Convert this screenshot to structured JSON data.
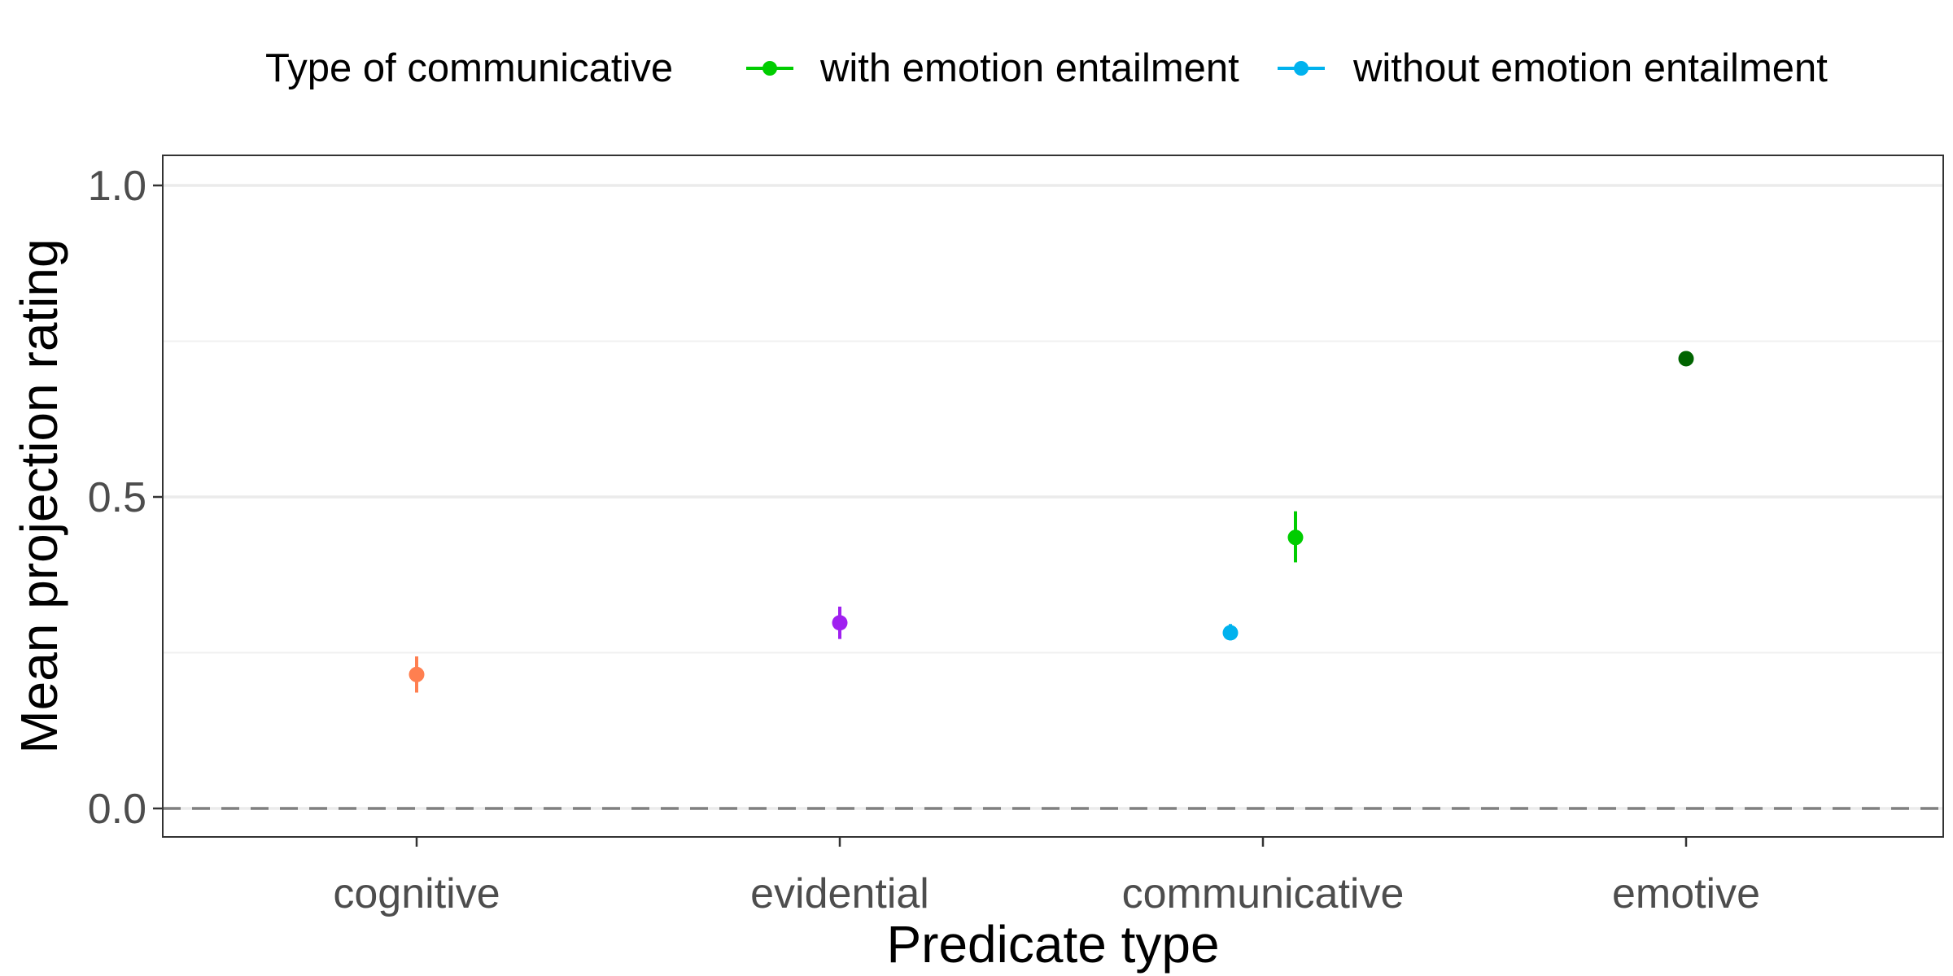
{
  "chart_data": {
    "type": "scatter",
    "subtype": "point-range",
    "categories": [
      "cognitive",
      "evidential",
      "communicative",
      "emotive"
    ],
    "xlabel": "Predicate type",
    "ylabel": "Mean projection rating",
    "ylim": [
      -0.05,
      1.05
    ],
    "yticks": [
      "0.0",
      "0.5",
      "1.0"
    ],
    "reference_line": {
      "y": 0.0,
      "style": "dashed"
    },
    "grid": true,
    "legend": {
      "title": "Type of communicative",
      "placement": "top",
      "entries": [
        {
          "label": "with emotion entailment",
          "color": "#00CD00"
        },
        {
          "label": "without emotion entailment",
          "color": "#00B2EE"
        }
      ]
    },
    "points": [
      {
        "category": "cognitive",
        "offset": 0,
        "y": 0.215,
        "ymin": 0.186,
        "ymax": 0.244,
        "color": "#FF7F50"
      },
      {
        "category": "evidential",
        "offset": 0,
        "y": 0.298,
        "ymin": 0.272,
        "ymax": 0.324,
        "color": "#A020F0"
      },
      {
        "category": "communicative",
        "offset": -1,
        "y": 0.282,
        "ymin": 0.27,
        "ymax": 0.296,
        "color": "#00B2EE"
      },
      {
        "category": "communicative",
        "offset": 1,
        "y": 0.435,
        "ymin": 0.395,
        "ymax": 0.477,
        "color": "#00CD00"
      },
      {
        "category": "emotive",
        "offset": 0,
        "y": 0.722,
        "ymin": 0.713,
        "ymax": 0.733,
        "color": "#006400"
      }
    ]
  }
}
